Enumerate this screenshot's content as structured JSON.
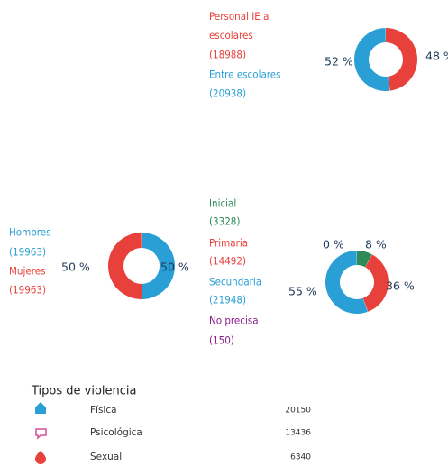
{
  "chart_data": [
    {
      "type": "donut",
      "categories": [
        "Personal IE a escolares",
        "Entre escolares"
      ],
      "colors": [
        "#e8413c",
        "#2a9fd6"
      ],
      "values": [
        48,
        52
      ],
      "value_labels": [
        "48 %",
        "52 %"
      ],
      "count_labels": [
        "(18988)",
        "(20938)"
      ]
    },
    {
      "type": "donut",
      "categories": [
        "Hombres",
        "Mujeres"
      ],
      "colors": [
        "#2a9fd6",
        "#e8413c"
      ],
      "values": [
        50,
        50
      ],
      "value_labels": [
        "50 %",
        "50 %"
      ],
      "count_labels": [
        "(19963)",
        "(19963)"
      ]
    },
    {
      "type": "donut",
      "categories": [
        "Inicial",
        "Primaria",
        "Secundaria",
        "No precisa"
      ],
      "colors": [
        "#2e8b57",
        "#e8413c",
        "#2a9fd6",
        "#8b1a8b"
      ],
      "values": [
        8,
        36,
        55,
        0
      ],
      "value_labels": [
        "8 %",
        "36 %",
        "55 %",
        "0 %"
      ],
      "count_labels": [
        "(3328)",
        "(14492)",
        "(21948)",
        "(150)"
      ]
    }
  ],
  "table": {
    "title": "Tipos de violencia",
    "rows": [
      [
        "Física",
        20150
      ],
      [
        "Psicológica",
        13436
      ],
      [
        "Sexual",
        6340
      ]
    ]
  }
}
